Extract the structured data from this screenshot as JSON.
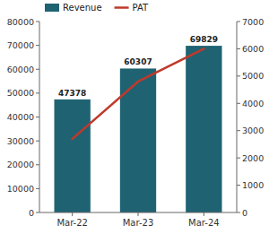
{
  "chart_data": {
    "type": "bar",
    "categories": [
      "Mar-22",
      "Mar-23",
      "Mar-24"
    ],
    "series": [
      {
        "name": "Revenue",
        "type": "bar",
        "color": "#1f6373",
        "values": [
          47378,
          60307,
          69829
        ],
        "data_labels": true
      },
      {
        "name": "PAT",
        "type": "line",
        "color": "#c0392b",
        "axis": "y2",
        "values": [
          2700,
          4800,
          6000
        ]
      }
    ],
    "ylim": [
      0,
      80000
    ],
    "yticks": [
      0,
      10000,
      20000,
      30000,
      40000,
      50000,
      60000,
      70000,
      80000
    ],
    "y2lim": [
      0,
      7000
    ],
    "y2ticks": [
      0,
      1000,
      2000,
      3000,
      4000,
      5000,
      6000,
      7000
    ],
    "legend": "upper left",
    "grid": false
  }
}
